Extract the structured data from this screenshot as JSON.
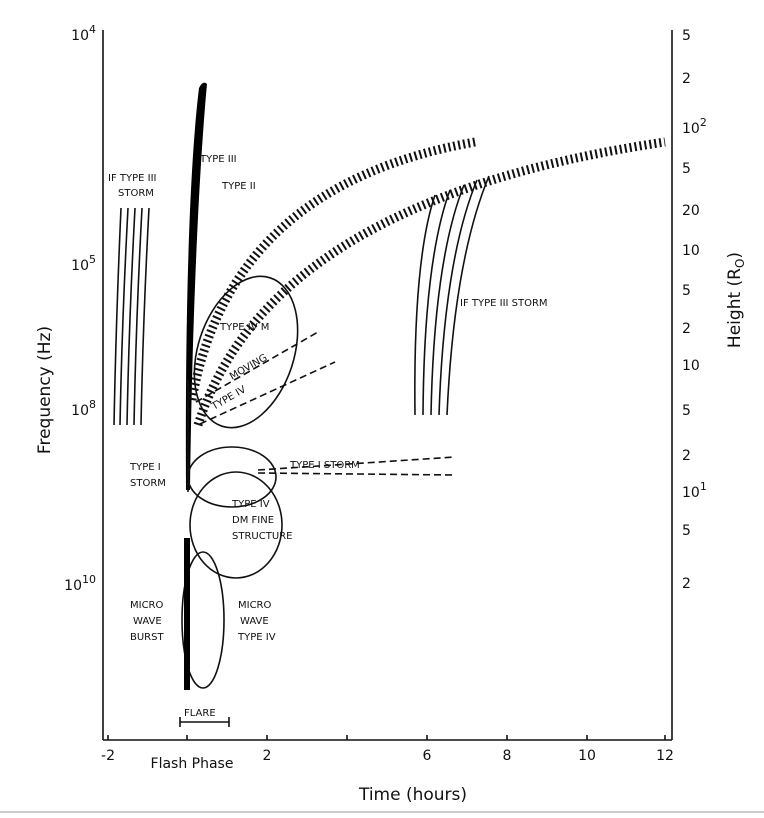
{
  "axes": {
    "x_label": "Time (hours)",
    "y_label": "Frequency (Hz)",
    "y2_label": [
      "Height (R",
      "O",
      ")"
    ],
    "x_ticks": [
      "-2",
      "2",
      "6",
      "8",
      "10",
      "12"
    ],
    "y_ticks": [
      [
        "10",
        "4"
      ],
      [
        "10",
        "5"
      ],
      [
        "10",
        "8"
      ],
      [
        "10",
        "10"
      ]
    ],
    "y2_ticks": [
      [
        "5"
      ],
      [
        "2"
      ],
      [
        "10",
        "2"
      ],
      [
        "5"
      ],
      [
        "20"
      ],
      [
        "10"
      ],
      [
        "5"
      ],
      [
        "2"
      ],
      [
        "10"
      ],
      [
        "5"
      ],
      [
        "2"
      ],
      [
        "10",
        "1"
      ],
      [
        "5"
      ],
      [
        "2"
      ]
    ]
  },
  "labels": {
    "type_iii": "TYPE III",
    "type_ii": "TYPE II",
    "if_storm_left": [
      "IF TYPE III",
      "STORM"
    ],
    "if_storm_right": "IF TYPE III STORM",
    "type_iv_m": "TYPE IV M",
    "moving_type_iv": [
      "MOVING",
      "TYPE IV"
    ],
    "type_i_storm_left": [
      "TYPE I",
      "STORM"
    ],
    "type_i_storm_right": "TYPE I STORM",
    "type_iv_dm": [
      "TYPE IV",
      "DM FINE",
      "STRUCTURE"
    ],
    "micro_wave_burst": [
      "MICRO",
      "WAVE",
      "BURST"
    ],
    "micro_wave_type_iv": [
      "MICRO",
      "WAVE",
      "TYPE IV"
    ],
    "flare": "FLARE",
    "flash_phase": "Flash Phase"
  }
}
